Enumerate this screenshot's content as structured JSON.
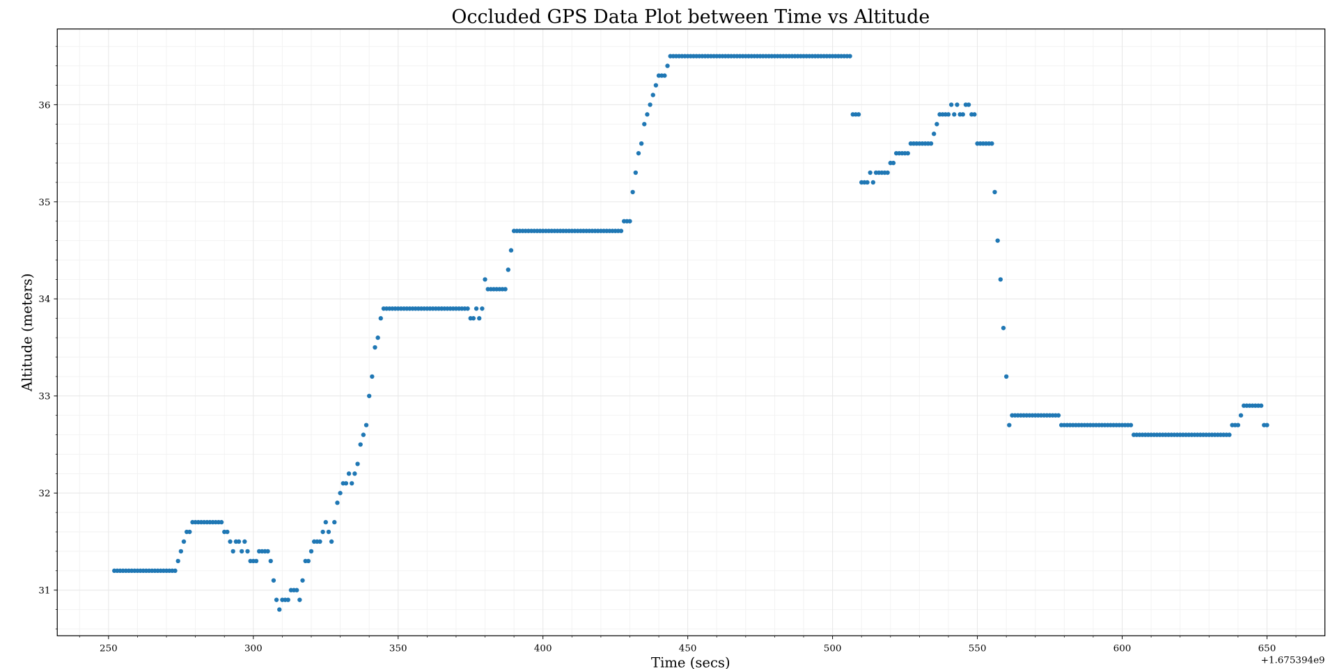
{
  "chart_data": {
    "type": "scatter",
    "title": "Occluded GPS Data Plot between Time vs Altitude",
    "x_label": "Time (secs)",
    "y_label": "Altitude (meters)",
    "x_offset_label": "+1.675394e9",
    "color": "#1f77b4",
    "grid": true,
    "xlim": [
      232.3,
      670
    ],
    "ylim": [
      30.53,
      36.78
    ],
    "xticks": [
      250,
      300,
      350,
      400,
      450,
      500,
      550,
      600,
      650
    ],
    "yticks": [
      31,
      32,
      33,
      34,
      35,
      36
    ],
    "xminorticks": [
      240,
      260,
      270,
      280,
      290,
      310,
      320,
      330,
      340,
      360,
      370,
      380,
      390,
      410,
      420,
      430,
      440,
      460,
      470,
      480,
      490,
      510,
      520,
      530,
      540,
      560,
      570,
      580,
      590,
      610,
      620,
      630,
      640,
      660
    ],
    "yminorticks": [
      30.6,
      30.8,
      31.2,
      31.4,
      31.6,
      31.8,
      32.2,
      32.4,
      32.6,
      32.8,
      33.2,
      33.4,
      33.6,
      33.8,
      34.2,
      34.4,
      34.6,
      34.8,
      35.2,
      35.4,
      35.6,
      35.8,
      36.2,
      36.4,
      36.6
    ],
    "x": [
      252,
      253,
      254,
      255,
      256,
      257,
      258,
      259,
      260,
      261,
      262,
      263,
      264,
      265,
      266,
      267,
      268,
      269,
      270,
      271,
      272,
      273,
      274,
      275,
      276,
      277,
      278,
      279,
      280,
      281,
      282,
      283,
      284,
      285,
      286,
      287,
      288,
      289,
      290,
      291,
      292,
      293,
      294,
      295,
      296,
      297,
      298,
      299,
      300,
      301,
      302,
      303,
      304,
      305,
      306,
      307,
      308,
      309,
      310,
      311,
      312,
      313,
      314,
      315,
      316,
      317,
      318,
      319,
      320,
      321,
      322,
      323,
      324,
      325,
      326,
      327,
      328,
      329,
      330,
      331,
      332,
      333,
      334,
      335,
      336,
      337,
      338,
      339,
      340,
      341,
      342,
      343,
      344,
      345,
      346,
      347,
      348,
      349,
      350,
      351,
      352,
      353,
      354,
      355,
      356,
      357,
      358,
      359,
      360,
      361,
      362,
      363,
      364,
      365,
      366,
      367,
      368,
      369,
      370,
      371,
      372,
      373,
      374,
      375,
      376,
      377,
      378,
      379,
      380,
      381,
      382,
      383,
      384,
      385,
      386,
      387,
      388,
      389,
      390,
      391,
      392,
      393,
      394,
      395,
      396,
      397,
      398,
      399,
      400,
      401,
      402,
      403,
      404,
      405,
      406,
      407,
      408,
      409,
      410,
      411,
      412,
      413,
      414,
      415,
      416,
      417,
      418,
      419,
      420,
      421,
      422,
      423,
      424,
      425,
      426,
      427,
      428,
      429,
      430,
      431,
      432,
      433,
      434,
      435,
      436,
      437,
      438,
      439,
      440,
      441,
      442,
      443,
      444,
      445,
      446,
      447,
      448,
      449,
      450,
      451,
      452,
      453,
      454,
      455,
      456,
      457,
      458,
      459,
      460,
      461,
      462,
      463,
      464,
      465,
      466,
      467,
      468,
      469,
      470,
      471,
      472,
      473,
      474,
      475,
      476,
      477,
      478,
      479,
      480,
      481,
      482,
      483,
      484,
      485,
      486,
      487,
      488,
      489,
      490,
      491,
      492,
      493,
      494,
      495,
      496,
      497,
      498,
      499,
      500,
      501,
      502,
      503,
      504,
      505,
      506,
      507,
      508,
      509,
      510,
      511,
      512,
      513,
      514,
      515,
      516,
      517,
      518,
      519,
      520,
      521,
      522,
      523,
      524,
      525,
      526,
      527,
      528,
      529,
      530,
      531,
      532,
      533,
      534,
      535,
      536,
      537,
      538,
      539,
      540,
      541,
      542,
      543,
      544,
      545,
      546,
      547,
      548,
      549,
      550,
      551,
      552,
      553,
      554,
      555,
      556,
      557,
      558,
      559,
      560,
      561,
      562,
      563,
      564,
      565,
      566,
      567,
      568,
      569,
      570,
      571,
      572,
      573,
      574,
      575,
      576,
      577,
      578,
      579,
      580,
      581,
      582,
      583,
      584,
      585,
      586,
      587,
      588,
      589,
      590,
      591,
      592,
      593,
      594,
      595,
      596,
      597,
      598,
      599,
      600,
      601,
      602,
      603,
      604,
      605,
      606,
      607,
      608,
      609,
      610,
      611,
      612,
      613,
      614,
      615,
      616,
      617,
      618,
      619,
      620,
      621,
      622,
      623,
      624,
      625,
      626,
      627,
      628,
      629,
      630,
      631,
      632,
      633,
      634,
      635,
      636,
      637,
      638,
      639,
      640,
      641,
      642,
      643,
      644,
      645,
      646,
      647,
      648,
      649,
      650
    ],
    "values": [
      31.2,
      31.2,
      31.2,
      31.2,
      31.2,
      31.2,
      31.2,
      31.2,
      31.2,
      31.2,
      31.2,
      31.2,
      31.2,
      31.2,
      31.2,
      31.2,
      31.2,
      31.2,
      31.2,
      31.2,
      31.2,
      31.2,
      31.3,
      31.4,
      31.5,
      31.6,
      31.6,
      31.7,
      31.7,
      31.7,
      31.7,
      31.7,
      31.7,
      31.7,
      31.7,
      31.7,
      31.7,
      31.7,
      31.6,
      31.6,
      31.5,
      31.4,
      31.5,
      31.5,
      31.4,
      31.5,
      31.4,
      31.3,
      31.3,
      31.3,
      31.4,
      31.4,
      31.4,
      31.4,
      31.3,
      31.1,
      30.9,
      30.8,
      30.9,
      30.9,
      30.9,
      31.0,
      31.0,
      31.0,
      30.9,
      31.1,
      31.3,
      31.3,
      31.4,
      31.5,
      31.5,
      31.5,
      31.6,
      31.7,
      31.6,
      31.5,
      31.7,
      31.9,
      32.0,
      32.1,
      32.1,
      32.2,
      32.1,
      32.2,
      32.3,
      32.5,
      32.6,
      32.7,
      33.0,
      33.2,
      33.5,
      33.6,
      33.8,
      33.9,
      33.9,
      33.9,
      33.9,
      33.9,
      33.9,
      33.9,
      33.9,
      33.9,
      33.9,
      33.9,
      33.9,
      33.9,
      33.9,
      33.9,
      33.9,
      33.9,
      33.9,
      33.9,
      33.9,
      33.9,
      33.9,
      33.9,
      33.9,
      33.9,
      33.9,
      33.9,
      33.9,
      33.9,
      33.9,
      33.8,
      33.8,
      33.9,
      33.8,
      33.9,
      34.2,
      34.1,
      34.1,
      34.1,
      34.1,
      34.1,
      34.1,
      34.1,
      34.3,
      34.5,
      34.7,
      34.7,
      34.7,
      34.7,
      34.7,
      34.7,
      34.7,
      34.7,
      34.7,
      34.7,
      34.7,
      34.7,
      34.7,
      34.7,
      34.7,
      34.7,
      34.7,
      34.7,
      34.7,
      34.7,
      34.7,
      34.7,
      34.7,
      34.7,
      34.7,
      34.7,
      34.7,
      34.7,
      34.7,
      34.7,
      34.7,
      34.7,
      34.7,
      34.7,
      34.7,
      34.7,
      34.7,
      34.7,
      34.8,
      34.8,
      34.8,
      35.1,
      35.3,
      35.5,
      35.6,
      35.8,
      35.9,
      36.0,
      36.1,
      36.2,
      36.3,
      36.3,
      36.3,
      36.4,
      36.5,
      36.5,
      36.5,
      36.5,
      36.5,
      36.5,
      36.5,
      36.5,
      36.5,
      36.5,
      36.5,
      36.5,
      36.5,
      36.5,
      36.5,
      36.5,
      36.5,
      36.5,
      36.5,
      36.5,
      36.5,
      36.5,
      36.5,
      36.5,
      36.5,
      36.5,
      36.5,
      36.5,
      36.5,
      36.5,
      36.5,
      36.5,
      36.5,
      36.5,
      36.5,
      36.5,
      36.5,
      36.5,
      36.5,
      36.5,
      36.5,
      36.5,
      36.5,
      36.5,
      36.5,
      36.5,
      36.5,
      36.5,
      36.5,
      36.5,
      36.5,
      36.5,
      36.5,
      36.5,
      36.5,
      36.5,
      36.5,
      36.5,
      36.5,
      36.5,
      36.5,
      36.5,
      36.5,
      35.9,
      35.9,
      35.9,
      35.2,
      35.2,
      35.2,
      35.3,
      35.2,
      35.3,
      35.3,
      35.3,
      35.3,
      35.3,
      35.4,
      35.4,
      35.5,
      35.5,
      35.5,
      35.5,
      35.5,
      35.6,
      35.6,
      35.6,
      35.6,
      35.6,
      35.6,
      35.6,
      35.6,
      35.7,
      35.8,
      35.9,
      35.9,
      35.9,
      35.9,
      36.0,
      35.9,
      36.0,
      35.9,
      35.9,
      36.0,
      36.0,
      35.9,
      35.9,
      35.6,
      35.6,
      35.6,
      35.6,
      35.6,
      35.6,
      35.1,
      34.6,
      34.2,
      33.7,
      33.2,
      32.7,
      32.8,
      32.8,
      32.8,
      32.8,
      32.8,
      32.8,
      32.8,
      32.8,
      32.8,
      32.8,
      32.8,
      32.8,
      32.8,
      32.8,
      32.8,
      32.8,
      32.8,
      32.7,
      32.7,
      32.7,
      32.7,
      32.7,
      32.7,
      32.7,
      32.7,
      32.7,
      32.7,
      32.7,
      32.7,
      32.7,
      32.7,
      32.7,
      32.7,
      32.7,
      32.7,
      32.7,
      32.7,
      32.7,
      32.7,
      32.7,
      32.7,
      32.7,
      32.6,
      32.6,
      32.6,
      32.6,
      32.6,
      32.6,
      32.6,
      32.6,
      32.6,
      32.6,
      32.6,
      32.6,
      32.6,
      32.6,
      32.6,
      32.6,
      32.6,
      32.6,
      32.6,
      32.6,
      32.6,
      32.6,
      32.6,
      32.6,
      32.6,
      32.6,
      32.6,
      32.6,
      32.6,
      32.6,
      32.6,
      32.6,
      32.6,
      32.6,
      32.7,
      32.7,
      32.7,
      32.8,
      32.9,
      32.9,
      32.9,
      32.9,
      32.9,
      32.9,
      32.9,
      32.7,
      32.7
    ]
  }
}
